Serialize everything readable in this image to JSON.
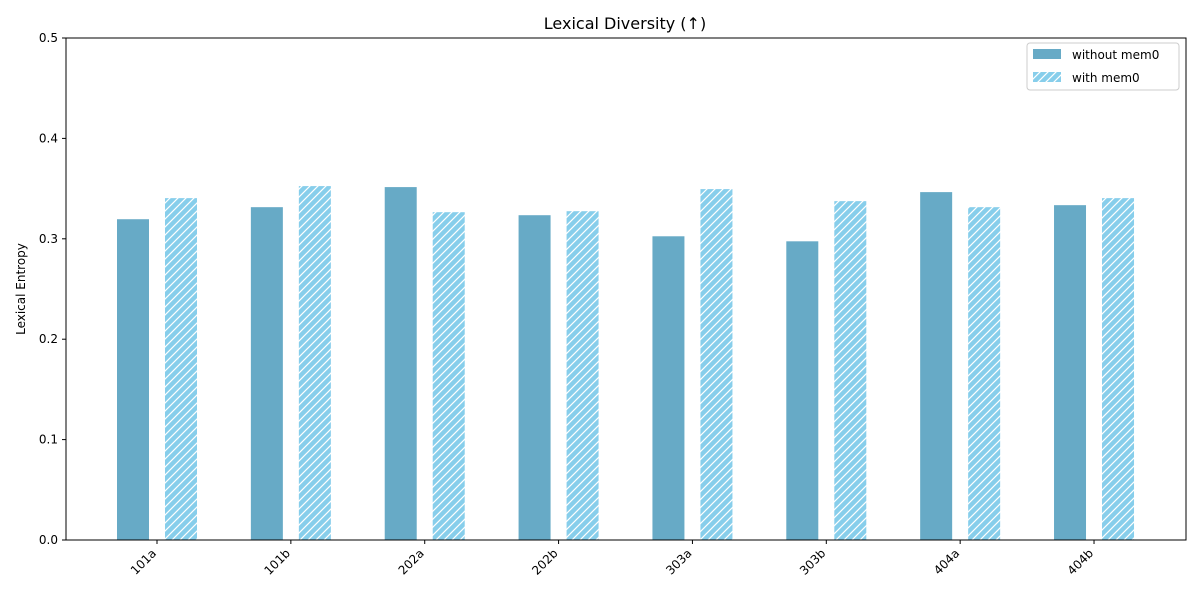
{
  "chart_data": {
    "type": "bar",
    "title": "Lexical Diversity (↑)",
    "xlabel": "",
    "ylabel": "Lexical Entropy",
    "categories": [
      "101a",
      "101b",
      "202a",
      "202b",
      "303a",
      "303b",
      "404a",
      "404b"
    ],
    "series": [
      {
        "name": "without mem0",
        "color": "#67AAC6",
        "hatch": false,
        "values": [
          0.32,
          0.332,
          0.352,
          0.324,
          0.303,
          0.298,
          0.347,
          0.334
        ]
      },
      {
        "name": "with mem0",
        "color": "#87CEEB",
        "hatch": true,
        "values": [
          0.341,
          0.353,
          0.327,
          0.328,
          0.35,
          0.338,
          0.332,
          0.341
        ]
      }
    ],
    "ylim": [
      0,
      0.5
    ],
    "yticks": [
      "0.0",
      "0.1",
      "0.2",
      "0.3",
      "0.4",
      "0.5"
    ],
    "grid": false,
    "legend_position": "top-right"
  }
}
